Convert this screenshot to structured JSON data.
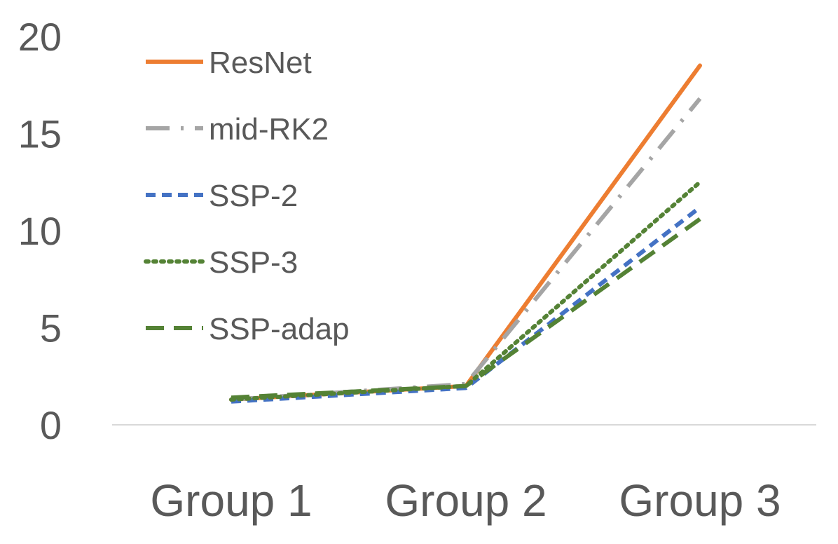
{
  "chart_data": {
    "type": "line",
    "title": "",
    "xlabel": "",
    "ylabel": "",
    "categories": [
      "Group 1",
      "Group 2",
      "Group 3"
    ],
    "ylim": [
      0,
      20
    ],
    "yticks": [
      "0",
      "5",
      "10",
      "15",
      "20"
    ],
    "grid": false,
    "legend_position": "top-left",
    "series": [
      {
        "name": "ResNet",
        "values": [
          1.3,
          2.0,
          18.5
        ],
        "color": "#ED7D31",
        "dash": "solid"
      },
      {
        "name": "mid-RK2",
        "values": [
          1.3,
          2.1,
          16.8
        ],
        "color": "#A5A5A5",
        "dash": "dashdot"
      },
      {
        "name": "SSP-2",
        "values": [
          1.2,
          1.9,
          11.2
        ],
        "color": "#4472C4",
        "dash": "dash"
      },
      {
        "name": "SSP-3",
        "values": [
          1.3,
          2.0,
          12.5
        ],
        "color": "#548235",
        "dash": "dot"
      },
      {
        "name": "SSP-adap",
        "values": [
          1.4,
          2.0,
          10.6
        ],
        "color": "#548235",
        "dash": "longdash"
      }
    ]
  }
}
